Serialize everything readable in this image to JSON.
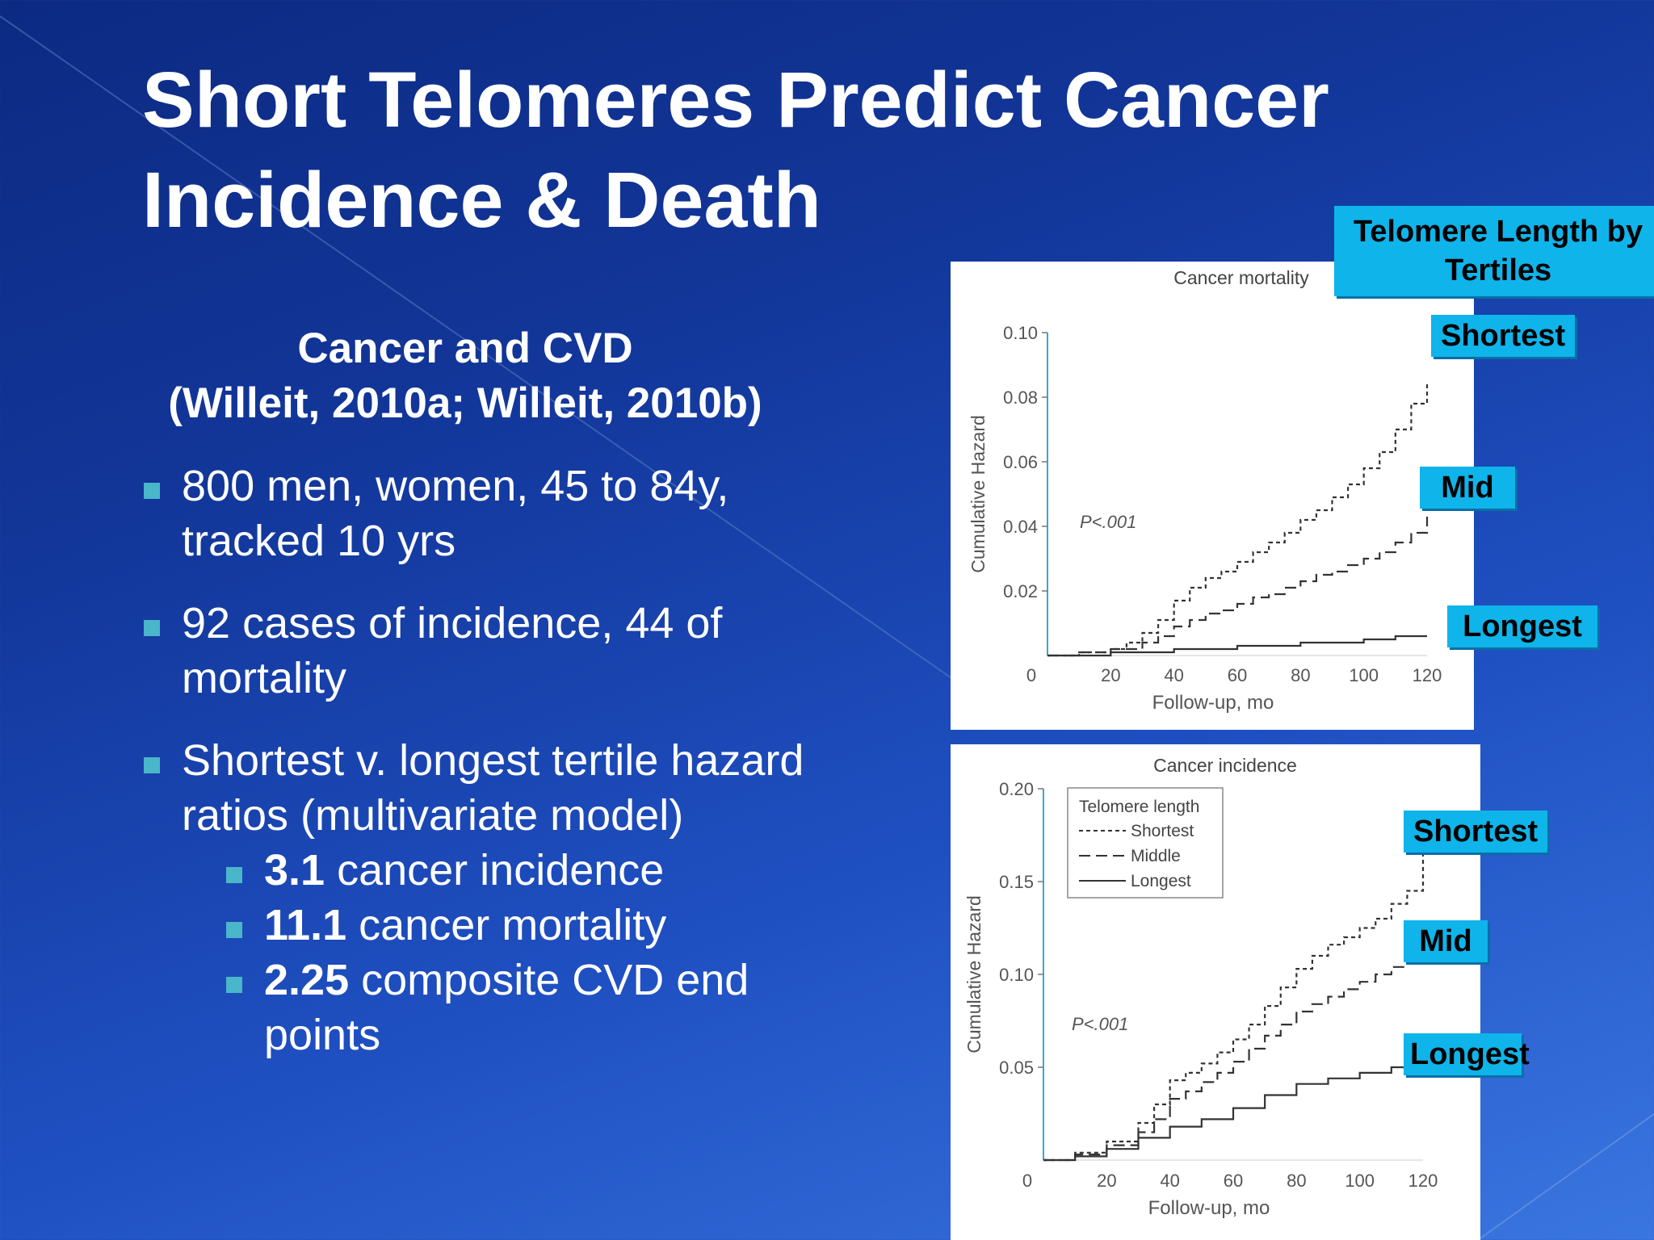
{
  "slide": {
    "title_line1": "Short Telomeres Predict Cancer",
    "title_line2": "Incidence & Death",
    "subhead_line1": "Cancer and CVD",
    "subhead_line2": "(Willeit, 2010a; Willeit, 2010b)",
    "bullets": [
      {
        "text": "800 men, women, 45 to 84y, tracked 10 yrs"
      },
      {
        "text": "92 cases of incidence, 44 of mortality"
      },
      {
        "text": "Shortest v. longest tertile hazard ratios (multivariate model)"
      }
    ],
    "subbullets": [
      {
        "value": "3.1",
        "text": " cancer incidence"
      },
      {
        "value": "11.1",
        "text": " cancer mortality"
      },
      {
        "value": "2.25",
        "text": " composite CVD end points"
      }
    ]
  },
  "callouts": {
    "header": "Telomere Length by Tertiles",
    "top": [
      "Shortest",
      "Mid",
      "Longest"
    ],
    "bottom": [
      "Shortest",
      "Mid",
      "Longest"
    ]
  },
  "chart_data": [
    {
      "type": "line",
      "title": "Cancer mortality",
      "xlabel": "Follow-up, mo",
      "ylabel": "Cumulative Hazard",
      "xlim": [
        0,
        120
      ],
      "ylim": [
        0,
        0.1
      ],
      "xticks": [
        "0",
        "20",
        "40",
        "60",
        "80",
        "100",
        "120"
      ],
      "yticks": [
        "0.02",
        "0.04",
        "0.06",
        "0.08",
        "0.10"
      ],
      "annotation": "P<.001",
      "series": [
        {
          "style": "dotted",
          "x": [
            0,
            10,
            20,
            25,
            30,
            35,
            40,
            45,
            50,
            55,
            60,
            65,
            70,
            75,
            80,
            85,
            90,
            95,
            100,
            105,
            110,
            115,
            120
          ],
          "y": [
            0,
            0.001,
            0.002,
            0.004,
            0.007,
            0.011,
            0.017,
            0.021,
            0.024,
            0.026,
            0.029,
            0.032,
            0.035,
            0.038,
            0.042,
            0.045,
            0.049,
            0.053,
            0.058,
            0.063,
            0.07,
            0.078,
            0.085
          ]
        },
        {
          "style": "dashed",
          "x": [
            0,
            10,
            20,
            30,
            35,
            40,
            45,
            50,
            55,
            60,
            65,
            70,
            75,
            80,
            85,
            90,
            95,
            100,
            105,
            110,
            115,
            120
          ],
          "y": [
            0,
            0.001,
            0.002,
            0.004,
            0.006,
            0.009,
            0.011,
            0.013,
            0.014,
            0.016,
            0.018,
            0.019,
            0.021,
            0.023,
            0.025,
            0.026,
            0.028,
            0.03,
            0.032,
            0.035,
            0.038,
            0.043
          ]
        },
        {
          "style": "solid",
          "x": [
            0,
            20,
            40,
            60,
            80,
            100,
            110,
            120
          ],
          "y": [
            0,
            0.001,
            0.002,
            0.003,
            0.004,
            0.005,
            0.006,
            0.006
          ]
        }
      ]
    },
    {
      "type": "line",
      "title": "Cancer incidence",
      "xlabel": "Follow-up, mo",
      "ylabel": "Cumulative Hazard",
      "xlim": [
        0,
        120
      ],
      "ylim": [
        0,
        0.2
      ],
      "xticks": [
        "0",
        "20",
        "40",
        "60",
        "80",
        "100",
        "120"
      ],
      "yticks": [
        "0.05",
        "0.10",
        "0.15",
        "0.20"
      ],
      "annotation": "P<.001",
      "legend": {
        "title": "Telomere length",
        "entries": [
          "Shortest",
          "Middle",
          "Longest"
        ],
        "position": "top-left"
      },
      "series": [
        {
          "name": "Shortest",
          "style": "dotted",
          "x": [
            0,
            10,
            20,
            30,
            35,
            40,
            45,
            50,
            55,
            60,
            65,
            70,
            75,
            80,
            85,
            90,
            95,
            100,
            105,
            110,
            115,
            120
          ],
          "y": [
            0,
            0.004,
            0.01,
            0.02,
            0.03,
            0.043,
            0.047,
            0.052,
            0.058,
            0.065,
            0.073,
            0.083,
            0.093,
            0.103,
            0.11,
            0.116,
            0.12,
            0.125,
            0.13,
            0.138,
            0.145,
            0.165
          ]
        },
        {
          "name": "Middle",
          "style": "dashed",
          "x": [
            0,
            10,
            20,
            30,
            35,
            40,
            45,
            50,
            55,
            60,
            65,
            70,
            75,
            80,
            85,
            90,
            95,
            100,
            105,
            110,
            115,
            120
          ],
          "y": [
            0,
            0.003,
            0.008,
            0.015,
            0.022,
            0.033,
            0.037,
            0.042,
            0.047,
            0.053,
            0.06,
            0.067,
            0.073,
            0.08,
            0.084,
            0.088,
            0.092,
            0.096,
            0.1,
            0.104,
            0.108,
            0.115
          ]
        },
        {
          "name": "Longest",
          "style": "solid",
          "x": [
            0,
            10,
            20,
            30,
            40,
            50,
            60,
            70,
            80,
            90,
            100,
            110,
            115,
            120
          ],
          "y": [
            0,
            0.002,
            0.006,
            0.012,
            0.018,
            0.022,
            0.028,
            0.035,
            0.041,
            0.044,
            0.047,
            0.05,
            0.053,
            0.057
          ]
        }
      ]
    }
  ]
}
